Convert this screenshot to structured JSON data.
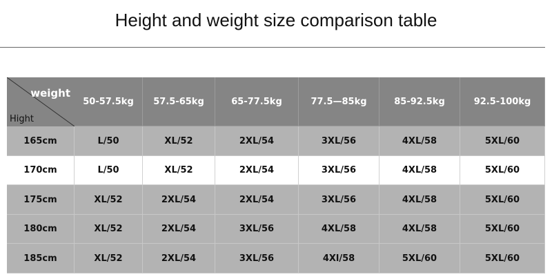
{
  "header": {
    "title": "Height and weight size comparison table"
  },
  "table": {
    "corner": {
      "column_label": "weight",
      "row_label": "Hight"
    },
    "columns": [
      "50-57.5kg",
      "57.5-65kg",
      "65-77.5kg",
      "77.5—85kg",
      "85-92.5kg",
      "92.5-100kg"
    ],
    "rows": [
      [
        "165cm",
        "L/50",
        "XL/52",
        "2XL/54",
        "3XL/56",
        "4XL/58",
        "5XL/60"
      ],
      [
        "170cm",
        "L/50",
        "XL/52",
        "2XL/54",
        "3XL/56",
        "4XL/58",
        "5XL/60"
      ],
      [
        "175cm",
        "XL/52",
        "2XL/54",
        "2XL/54",
        "3XL/56",
        "4XL/58",
        "5XL/60"
      ],
      [
        "180cm",
        "XL/52",
        "2XL/54",
        "3XL/56",
        "4XL/58",
        "4XL/58",
        "5XL/60"
      ],
      [
        "185cm",
        "XL/52",
        "2XL/54",
        "3XL/56",
        "4Xl/58",
        "5XL/60",
        "5XL/60"
      ]
    ]
  }
}
